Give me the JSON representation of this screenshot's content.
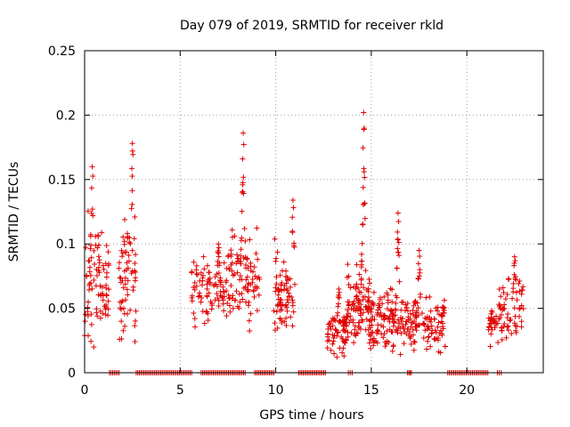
{
  "chart_data": {
    "type": "scatter",
    "title": "Day 079 of 2019, SRMTID for receiver rkld",
    "xlabel": "GPS time / hours",
    "ylabel": "SRMTID / TECUs",
    "xlim": [
      0,
      24
    ],
    "ylim": [
      0,
      0.25
    ],
    "xticks": [
      0,
      5,
      10,
      15,
      20
    ],
    "xtick_labels": [
      "0",
      "5",
      "10",
      "15",
      "20"
    ],
    "yticks": [
      0,
      0.05,
      0.1,
      0.15,
      0.2,
      0.25
    ],
    "ytick_labels": [
      "0",
      "0.05",
      "0.1",
      "0.15",
      "0.2",
      "0.25"
    ],
    "grid": true,
    "marker": "+",
    "color": "#e00000",
    "series": [
      {
        "name": "SRMTID",
        "clusters": [
          {
            "x_range": [
              0.0,
              1.3
            ],
            "base": 0.068,
            "spread": 0.02,
            "peak": 0.16,
            "peak_x": 0.4,
            "count": 90
          },
          {
            "x_range": [
              1.8,
              2.7
            ],
            "base": 0.07,
            "spread": 0.02,
            "peak": 0.178,
            "peak_x": 2.5,
            "count": 70
          },
          {
            "x_range": [
              5.6,
              7.4
            ],
            "base": 0.063,
            "spread": 0.012,
            "peak": 0.1,
            "peak_x": 7.0,
            "count": 90
          },
          {
            "x_range": [
              7.4,
              9.2
            ],
            "base": 0.075,
            "spread": 0.015,
            "peak": 0.186,
            "peak_x": 8.3,
            "count": 110
          },
          {
            "x_range": [
              9.9,
              11.0
            ],
            "base": 0.06,
            "spread": 0.015,
            "peak": 0.134,
            "peak_x": 10.9,
            "count": 80
          },
          {
            "x_range": [
              12.7,
              13.7
            ],
            "base": 0.03,
            "spread": 0.008,
            "peak": 0.065,
            "peak_x": 13.3,
            "count": 70
          },
          {
            "x_range": [
              13.7,
              14.9
            ],
            "base": 0.05,
            "spread": 0.015,
            "peak": 0.202,
            "peak_x": 14.6,
            "count": 110
          },
          {
            "x_range": [
              14.9,
              16.5
            ],
            "base": 0.042,
            "spread": 0.012,
            "peak": 0.124,
            "peak_x": 16.4,
            "count": 120
          },
          {
            "x_range": [
              16.5,
              18.9
            ],
            "base": 0.038,
            "spread": 0.01,
            "peak": 0.095,
            "peak_x": 17.5,
            "count": 140
          },
          {
            "x_range": [
              21.1,
              21.6
            ],
            "base": 0.035,
            "spread": 0.006,
            "peak": 0.048,
            "peak_x": 21.3,
            "count": 25
          },
          {
            "x_range": [
              21.6,
              23.0
            ],
            "base": 0.052,
            "spread": 0.012,
            "peak": 0.09,
            "peak_x": 22.5,
            "count": 70
          }
        ],
        "zero_segments": [
          [
            1.3,
            1.8
          ],
          [
            2.7,
            5.6
          ],
          [
            6.1,
            8.4
          ],
          [
            8.9,
            9.9
          ],
          [
            11.2,
            12.6
          ],
          [
            13.8,
            14.0
          ],
          [
            16.9,
            17.1
          ],
          [
            19.0,
            21.1
          ],
          [
            21.6,
            21.8
          ]
        ]
      }
    ]
  }
}
